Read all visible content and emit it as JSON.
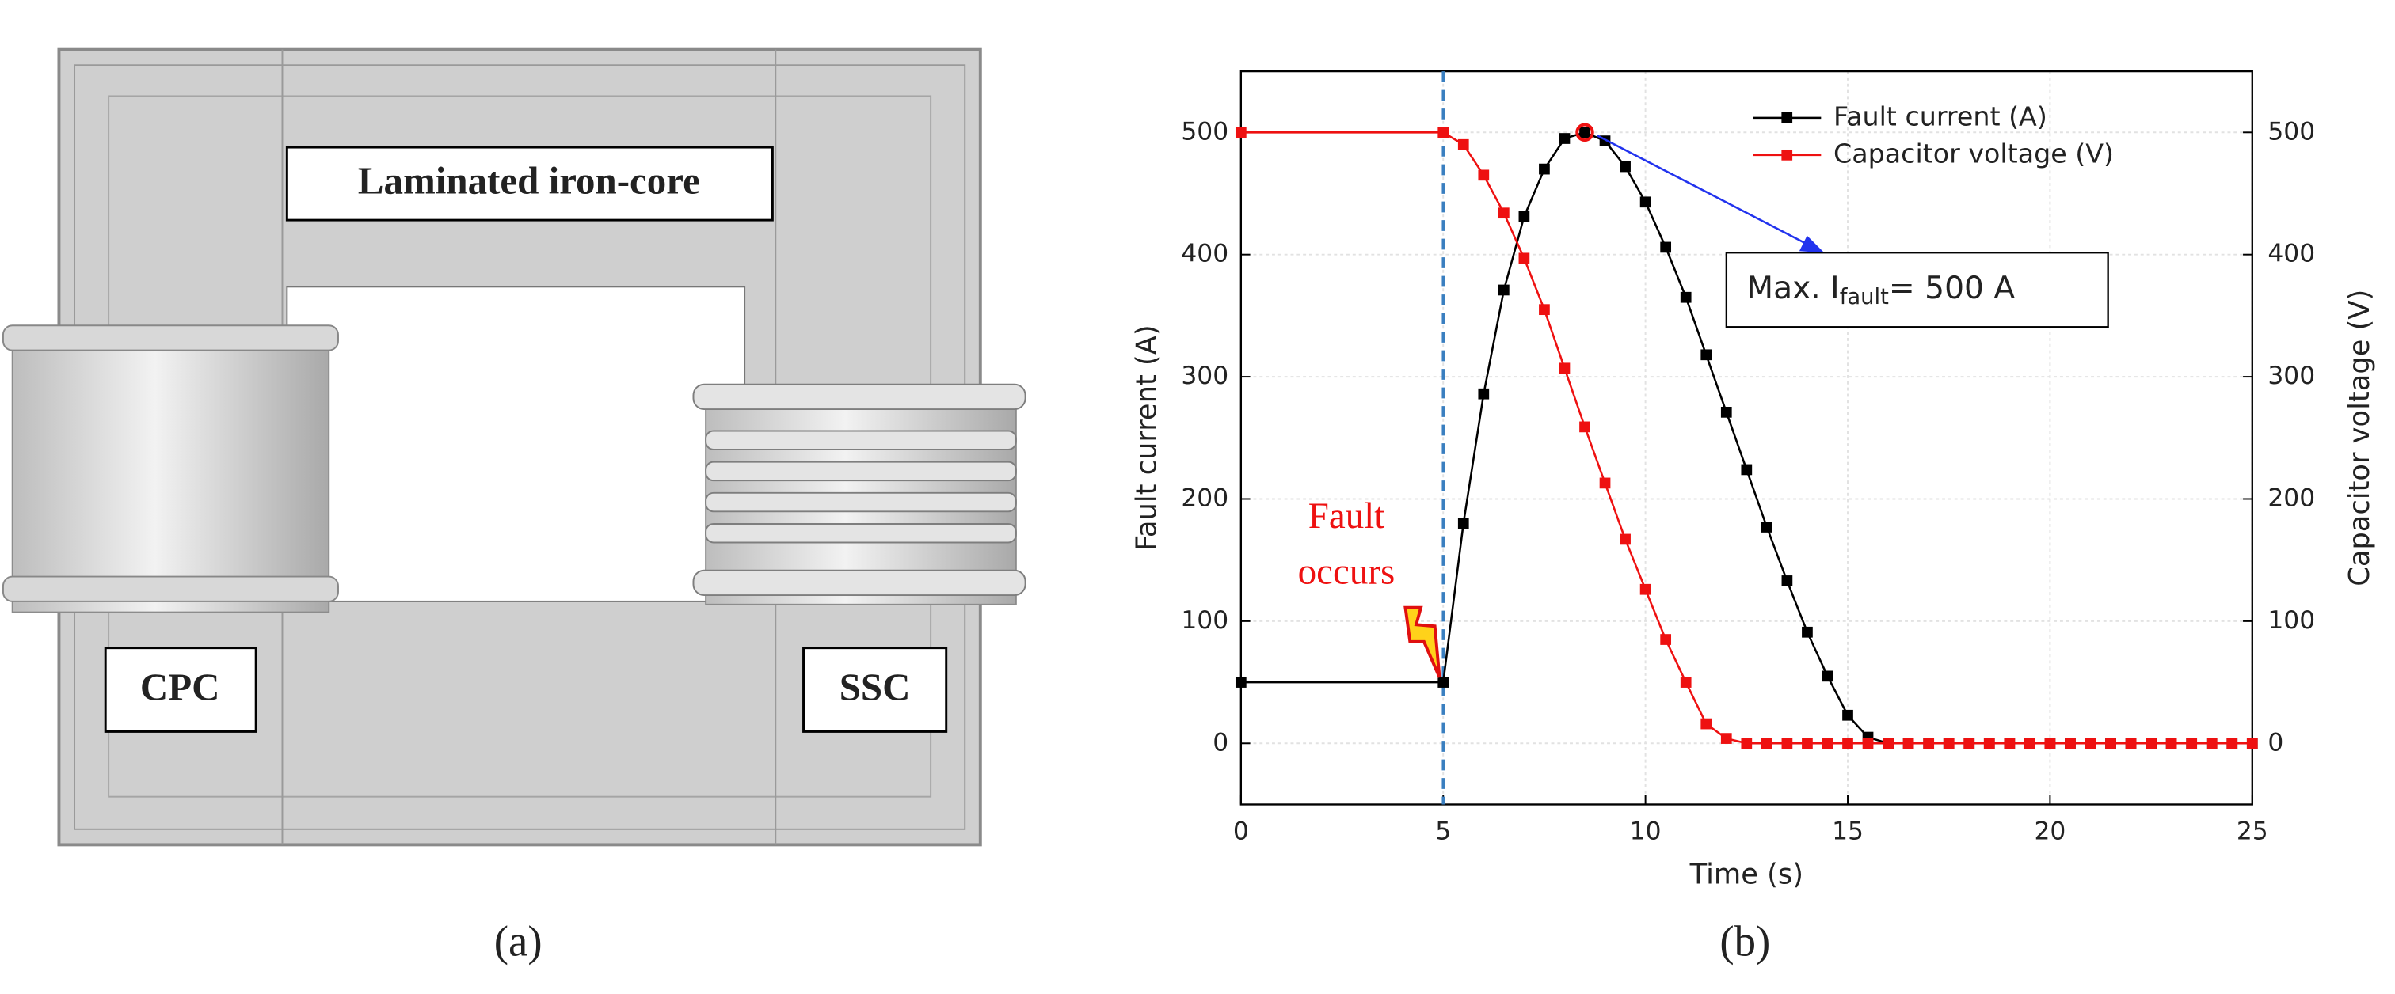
{
  "panel_a": {
    "label": "(a)",
    "core_label": "Laminated iron-core",
    "left_coil": "CPC",
    "right_coil": "SSC"
  },
  "panel_b": {
    "label": "(b)"
  },
  "chart_data": {
    "type": "line",
    "xlabel": "Time (s)",
    "ylabel": "Fault current (A)",
    "y2label": "Capacitor voltage (V)",
    "x": [
      0,
      5,
      5.5,
      6,
      6.5,
      7,
      7.5,
      8,
      8.5,
      9,
      9.5,
      10,
      10.5,
      11,
      11.5,
      12,
      12.5,
      13,
      13.5,
      14,
      14.5,
      15,
      15.5,
      16,
      16.5,
      17,
      17.5,
      18,
      18.5,
      19,
      19.5,
      20,
      20.5,
      21,
      21.5,
      22,
      22.5,
      23,
      23.5,
      24,
      24.5,
      25
    ],
    "series": [
      {
        "name": "Fault current (A)",
        "color": "#000000",
        "values": [
          50,
          50,
          180,
          286,
          371,
          431,
          470,
          495,
          500,
          493,
          472,
          443,
          406,
          365,
          318,
          271,
          224,
          177,
          133,
          91,
          55,
          23,
          5,
          0,
          0,
          0,
          0,
          0,
          0,
          0,
          0,
          0,
          0,
          0,
          0,
          0,
          0,
          0,
          0,
          0,
          0,
          0
        ]
      },
      {
        "name": "Capacitor voltage (V)",
        "color": "#ee1111",
        "axis": "y2",
        "values": [
          500,
          500,
          490,
          465,
          434,
          397,
          355,
          307,
          259,
          213,
          167,
          126,
          85,
          50,
          16,
          4,
          0,
          0,
          0,
          0,
          0,
          0,
          0,
          0,
          0,
          0,
          0,
          0,
          0,
          0,
          0,
          0,
          0,
          0,
          0,
          0,
          0,
          0,
          0,
          0,
          0,
          0
        ]
      }
    ],
    "xlim": [
      0,
      25
    ],
    "xticks": [
      0,
      5,
      10,
      15,
      20,
      25
    ],
    "ylim": [
      -50,
      550
    ],
    "yticks": [
      0,
      100,
      200,
      300,
      400,
      500
    ],
    "y2lim": [
      -50,
      550
    ],
    "y2ticks": [
      0,
      100,
      200,
      300,
      400,
      500
    ],
    "grid": true,
    "legend": "upper right",
    "annotations": {
      "fault_time": 5,
      "fault_text": [
        "Fault",
        "occurs"
      ],
      "max_text": [
        "Max. I",
        "fault",
        "= 500 A"
      ]
    }
  }
}
